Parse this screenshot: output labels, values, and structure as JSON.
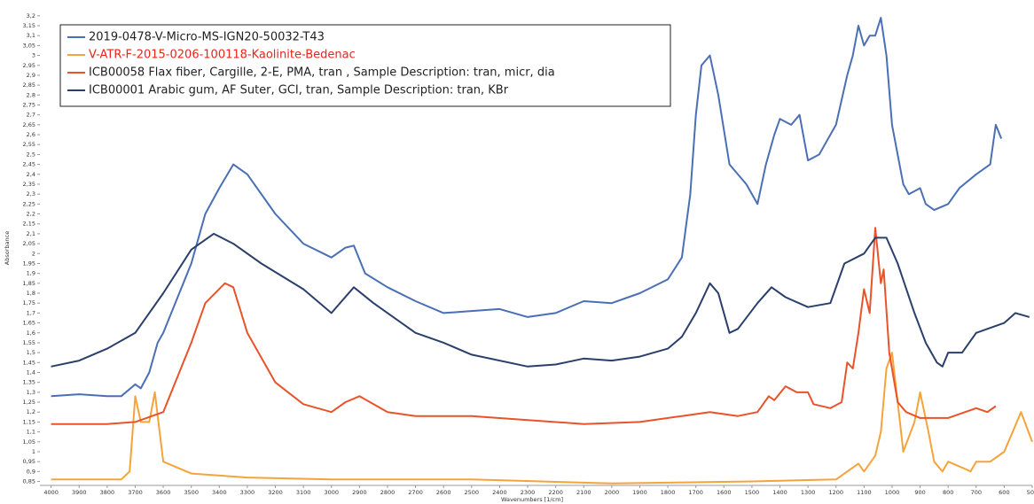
{
  "chart_data": {
    "type": "line",
    "x_label": "Wavenumbers [1/cm]",
    "y_label": "Absorbance",
    "xlim": [
      4040,
      500
    ],
    "ylim": [
      0.83,
      3.235
    ],
    "xticks": [
      4000,
      3900,
      3800,
      3700,
      3600,
      3500,
      3400,
      3300,
      3200,
      3100,
      3000,
      2900,
      2800,
      2700,
      2600,
      2500,
      2400,
      2300,
      2200,
      2100,
      2000,
      1900,
      1800,
      1700,
      1600,
      1500,
      1400,
      1300,
      1200,
      1100,
      1000,
      900,
      800,
      700,
      600,
      500
    ],
    "yticks": [
      {
        "value": 0.85,
        "label": "0,85"
      },
      {
        "value": 0.9,
        "label": "0,9"
      },
      {
        "value": 0.95,
        "label": "0,95"
      },
      1,
      {
        "value": 1.05,
        "label": "1,05"
      },
      {
        "value": 1.1,
        "label": "1,1"
      },
      {
        "value": 1.15,
        "label": "1,15"
      },
      {
        "value": 1.2,
        "label": "1,2"
      },
      {
        "value": 1.25,
        "label": "1,25"
      },
      {
        "value": 1.3,
        "label": "1,3"
      },
      {
        "value": 1.35,
        "label": "1,35"
      },
      {
        "value": 1.4,
        "label": "1,4"
      },
      {
        "value": 1.45,
        "label": "1,45"
      },
      {
        "value": 1.5,
        "label": "1,5"
      },
      {
        "value": 1.55,
        "label": "1,55"
      },
      {
        "value": 1.6,
        "label": "1,6"
      },
      {
        "value": 1.65,
        "label": "1,65"
      },
      {
        "value": 1.7,
        "label": "1,7"
      },
      {
        "value": 1.75,
        "label": "1,75"
      },
      {
        "value": 1.8,
        "label": "1,8"
      },
      {
        "value": 1.85,
        "label": "1,85"
      },
      {
        "value": 1.9,
        "label": "1,9"
      },
      {
        "value": 1.95,
        "label": "1,95"
      },
      2,
      {
        "value": 2.05,
        "label": "2,05"
      },
      {
        "value": 2.1,
        "label": "2,1"
      },
      {
        "value": 2.15,
        "label": "2,15"
      },
      {
        "value": 2.2,
        "label": "2,2"
      },
      {
        "value": 2.25,
        "label": "2,25"
      },
      {
        "value": 2.3,
        "label": "2,3"
      },
      {
        "value": 2.35,
        "label": "2,35"
      },
      {
        "value": 2.4,
        "label": "2,4"
      },
      {
        "value": 2.45,
        "label": "2,45"
      },
      {
        "value": 2.5,
        "label": "2,5"
      },
      {
        "value": 2.55,
        "label": "2,55"
      },
      {
        "value": 2.6,
        "label": "2,6"
      },
      {
        "value": 2.65,
        "label": "2,65"
      },
      {
        "value": 2.7,
        "label": "2,7"
      },
      {
        "value": 2.75,
        "label": "2,75"
      },
      {
        "value": 2.8,
        "label": "2,8"
      },
      {
        "value": 2.85,
        "label": "2,85"
      },
      {
        "value": 2.9,
        "label": "2,9"
      },
      {
        "value": 2.95,
        "label": "2,95"
      },
      3,
      {
        "value": 3.05,
        "label": "3,05"
      },
      {
        "value": 3.1,
        "label": "3,1"
      },
      {
        "value": 3.15,
        "label": "3,15"
      },
      {
        "value": 3.2,
        "label": "3,2"
      }
    ],
    "series": [
      {
        "name": "2019-0478-V-Micro-MS-IGN20-50032-T43",
        "color": "#4a6fb5",
        "x": [
          4000,
          3900,
          3800,
          3750,
          3700,
          3680,
          3650,
          3620,
          3600,
          3500,
          3450,
          3400,
          3350,
          3300,
          3200,
          3100,
          3000,
          2950,
          2920,
          2880,
          2800,
          2700,
          2600,
          2500,
          2400,
          2300,
          2200,
          2100,
          2000,
          1900,
          1800,
          1750,
          1720,
          1700,
          1680,
          1650,
          1620,
          1580,
          1520,
          1480,
          1450,
          1420,
          1400,
          1360,
          1330,
          1300,
          1260,
          1200,
          1160,
          1140,
          1120,
          1100,
          1080,
          1060,
          1040,
          1020,
          1000,
          960,
          940,
          900,
          880,
          850,
          800,
          760,
          700,
          650,
          630,
          610
        ],
        "values": [
          1.28,
          1.29,
          1.28,
          1.28,
          1.34,
          1.32,
          1.4,
          1.55,
          1.6,
          1.95,
          2.2,
          2.33,
          2.45,
          2.4,
          2.2,
          2.05,
          1.98,
          2.03,
          2.04,
          1.9,
          1.83,
          1.76,
          1.7,
          1.71,
          1.72,
          1.68,
          1.7,
          1.76,
          1.75,
          1.8,
          1.87,
          1.98,
          2.3,
          2.7,
          2.95,
          3.0,
          2.8,
          2.45,
          2.35,
          2.25,
          2.45,
          2.6,
          2.68,
          2.65,
          2.7,
          2.47,
          2.5,
          2.65,
          2.9,
          3.0,
          3.15,
          3.05,
          3.1,
          3.1,
          3.19,
          3.0,
          2.65,
          2.35,
          2.3,
          2.33,
          2.25,
          2.22,
          2.25,
          2.33,
          2.4,
          2.45,
          2.65,
          2.58
        ]
      },
      {
        "name": "V-ATR-F-2015-0206-100118-Kaolinite-Bedenac",
        "color": "#f5a33b",
        "x": [
          4000,
          3750,
          3720,
          3700,
          3680,
          3650,
          3630,
          3600,
          3500,
          3300,
          3000,
          2500,
          2000,
          1500,
          1200,
          1120,
          1100,
          1060,
          1040,
          1020,
          1000,
          980,
          960,
          920,
          900,
          870,
          850,
          820,
          800,
          750,
          720,
          700,
          650,
          600,
          540,
          500
        ],
        "values": [
          0.86,
          0.86,
          0.9,
          1.28,
          1.15,
          1.15,
          1.3,
          0.95,
          0.89,
          0.87,
          0.86,
          0.86,
          0.84,
          0.85,
          0.86,
          0.94,
          0.9,
          0.98,
          1.1,
          1.42,
          1.5,
          1.25,
          1.0,
          1.15,
          1.3,
          1.1,
          0.95,
          0.9,
          0.95,
          0.92,
          0.9,
          0.95,
          0.95,
          1.0,
          1.2,
          1.05
        ]
      },
      {
        "name": "ICB00058 Flax fiber, Cargille, 2-E, PMA, tran , Sample Description: tran, micr, dia",
        "color": "#e8532a",
        "x": [
          4000,
          3800,
          3700,
          3600,
          3500,
          3450,
          3380,
          3350,
          3300,
          3200,
          3100,
          3000,
          2950,
          2900,
          2850,
          2800,
          2700,
          2500,
          2300,
          2100,
          1900,
          1750,
          1700,
          1650,
          1550,
          1480,
          1440,
          1420,
          1380,
          1340,
          1300,
          1280,
          1220,
          1180,
          1160,
          1140,
          1120,
          1100,
          1080,
          1060,
          1040,
          1030,
          1010,
          980,
          950,
          900,
          800,
          700,
          660,
          630
        ],
        "values": [
          1.14,
          1.14,
          1.15,
          1.2,
          1.55,
          1.75,
          1.85,
          1.83,
          1.6,
          1.35,
          1.24,
          1.2,
          1.25,
          1.28,
          1.24,
          1.2,
          1.18,
          1.18,
          1.16,
          1.14,
          1.15,
          1.18,
          1.19,
          1.2,
          1.18,
          1.2,
          1.28,
          1.26,
          1.33,
          1.3,
          1.3,
          1.24,
          1.22,
          1.25,
          1.45,
          1.42,
          1.6,
          1.82,
          1.7,
          2.13,
          1.85,
          1.92,
          1.5,
          1.25,
          1.2,
          1.17,
          1.17,
          1.22,
          1.2,
          1.23
        ]
      },
      {
        "name": "ICB00001 Arabic gum, AF Suter, GCI, tran, Sample Description: tran, KBr",
        "color": "#2a3f6b",
        "x": [
          4000,
          3900,
          3800,
          3700,
          3600,
          3500,
          3420,
          3350,
          3250,
          3100,
          3000,
          2920,
          2850,
          2700,
          2600,
          2500,
          2300,
          2200,
          2100,
          2000,
          1900,
          1800,
          1750,
          1700,
          1650,
          1620,
          1580,
          1550,
          1480,
          1430,
          1380,
          1300,
          1220,
          1170,
          1100,
          1060,
          1020,
          980,
          920,
          880,
          840,
          820,
          800,
          750,
          700,
          600,
          560,
          510
        ],
        "values": [
          1.43,
          1.46,
          1.52,
          1.6,
          1.8,
          2.02,
          2.1,
          2.05,
          1.95,
          1.82,
          1.7,
          1.83,
          1.75,
          1.6,
          1.55,
          1.49,
          1.43,
          1.44,
          1.47,
          1.46,
          1.48,
          1.52,
          1.58,
          1.7,
          1.85,
          1.8,
          1.6,
          1.62,
          1.75,
          1.83,
          1.78,
          1.73,
          1.75,
          1.95,
          2.0,
          2.08,
          2.08,
          1.95,
          1.7,
          1.55,
          1.45,
          1.43,
          1.5,
          1.5,
          1.6,
          1.65,
          1.7,
          1.68
        ]
      }
    ]
  }
}
